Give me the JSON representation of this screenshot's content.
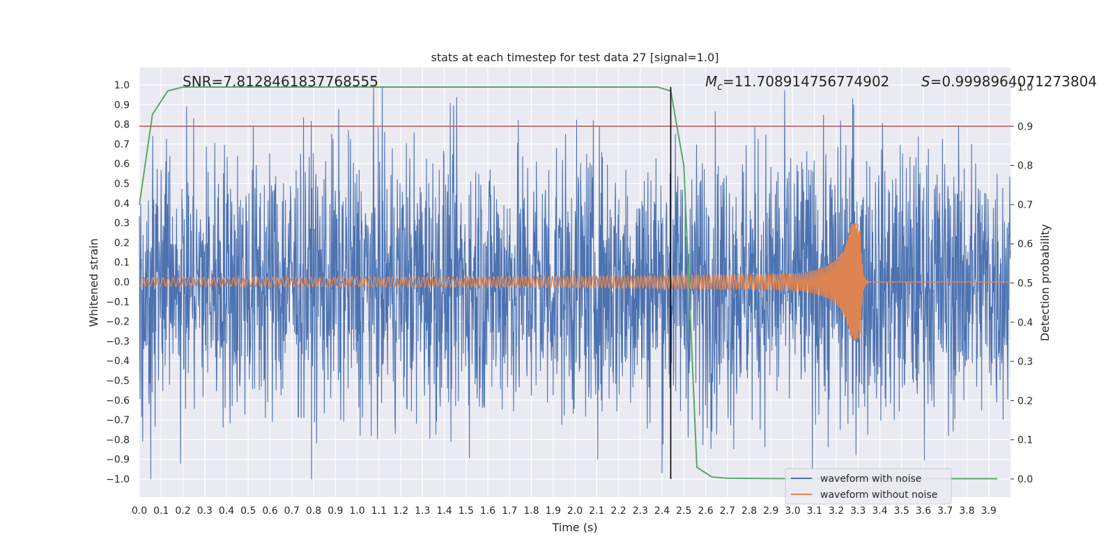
{
  "chart_data": {
    "type": "line",
    "title": "stats at each timestep for test data 27 [signal=1.0]",
    "xlabel": "Time (s)",
    "ylabel": "Whitened strain",
    "y2label": "Detection probability",
    "xlim": [
      0.0,
      4.0
    ],
    "ylim": [
      -1.1,
      1.1
    ],
    "y2lim": [
      -0.05,
      1.05
    ],
    "xticks": [
      0.0,
      0.1,
      0.2,
      0.3,
      0.4,
      0.5,
      0.6,
      0.7,
      0.8,
      0.9,
      1.0,
      1.1,
      1.2,
      1.3,
      1.4,
      1.5,
      1.6,
      1.7,
      1.8,
      1.9,
      2.0,
      2.1,
      2.2,
      2.3,
      2.4,
      2.5,
      2.6,
      2.7,
      2.8,
      2.9,
      3.0,
      3.1,
      3.2,
      3.3,
      3.4,
      3.5,
      3.6,
      3.7,
      3.8,
      3.9
    ],
    "yticks": [
      1.0,
      0.9,
      0.8,
      0.7,
      0.6,
      0.5,
      0.4,
      0.3,
      0.2,
      0.1,
      0.0,
      -0.1,
      -0.2,
      -0.3,
      -0.4,
      -0.5,
      -0.6,
      -0.7,
      -0.8,
      -0.9,
      -1.0
    ],
    "y2ticks": [
      0.0,
      0.1,
      0.2,
      0.3,
      0.4,
      0.5,
      0.6,
      0.7,
      0.8,
      0.9,
      1.0
    ],
    "grid": true,
    "legend_location": "bottom-right",
    "annotations": {
      "snr": "SNR=7.8128461837768555",
      "mc_symbol": "M",
      "mc_subscript": "c",
      "mc_value": "=11.708914756774902",
      "s_symbol": "S",
      "s_value": "=0.9998964071273804"
    },
    "threshold_y2": 0.9,
    "marker_time": 2.44,
    "series": [
      {
        "name": "waveform with noise",
        "color": "#4c72b0",
        "noise_amplitude": 0.35,
        "range": [
          -1.0,
          0.99
        ]
      },
      {
        "name": "waveform without noise",
        "color": "#dd8452",
        "merger_time": 3.31,
        "peak_amplitude": 0.3
      },
      {
        "name": "detection probability",
        "color": "#55a868",
        "x": [
          0.0,
          0.06,
          0.13,
          0.2,
          0.3,
          0.5,
          1.0,
          1.5,
          2.0,
          2.3,
          2.38,
          2.44,
          2.5,
          2.56,
          2.63,
          2.7,
          3.0,
          3.5,
          3.94
        ],
        "values": [
          0.7,
          0.93,
          0.99,
          1.0,
          1.0,
          1.0,
          1.0,
          1.0,
          1.0,
          1.0,
          1.0,
          0.99,
          0.8,
          0.03,
          0.005,
          0.002,
          0.001,
          0.001,
          0.001
        ]
      },
      {
        "name": "threshold",
        "color": "#c44e52"
      },
      {
        "name": "time marker",
        "color": "#000000"
      }
    ]
  }
}
